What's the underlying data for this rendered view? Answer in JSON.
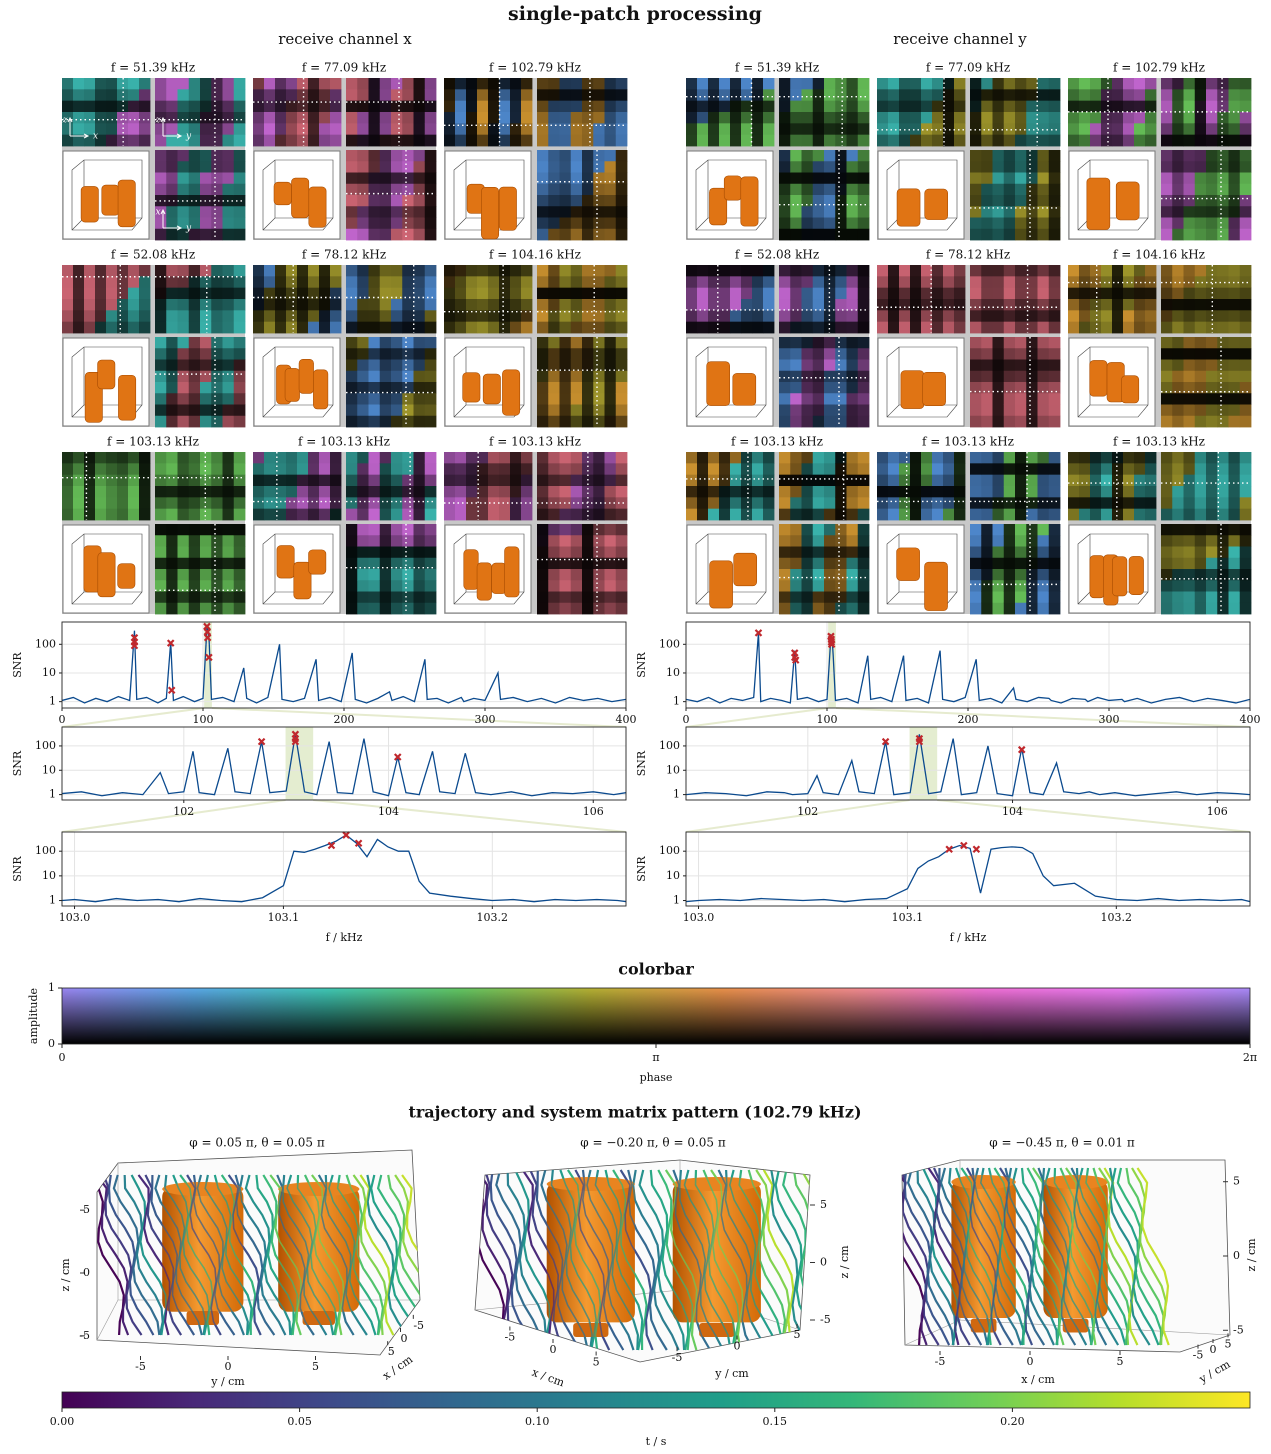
{
  "title": "single-patch processing",
  "trajectory_title": "trajectory and system matrix pattern (102.79 kHz)",
  "orientation_labels": [
    [
      "z",
      "x"
    ],
    [
      "z",
      "y"
    ],
    [
      "x",
      "y"
    ]
  ],
  "channels": [
    {
      "label": "receive channel x",
      "panels": [
        "f = 51.39 kHz",
        "f = 77.09 kHz",
        "f = 102.79 kHz",
        "f = 52.08 kHz",
        "f = 78.12 kHz",
        "f = 104.16 kHz",
        "f = 103.13 kHz",
        "f = 103.13 kHz",
        "f = 103.13 kHz"
      ]
    },
    {
      "label": "receive channel y",
      "panels": [
        "f = 51.39 kHz",
        "f = 77.09 kHz",
        "f = 102.79 kHz",
        "f = 52.08 kHz",
        "f = 78.12 kHz",
        "f = 104.16 kHz",
        "f = 103.13 kHz",
        "f = 103.13 kHz",
        "f = 103.13 kHz"
      ]
    }
  ],
  "chart_data": [
    {
      "type": "line",
      "ylabel": "SNR",
      "yscale": "log",
      "grid": true,
      "xlim": [
        0,
        400
      ],
      "xticks": [
        0,
        100,
        200,
        300,
        400
      ],
      "ylim": [
        0.6,
        600
      ],
      "yticks": [
        1,
        10,
        100
      ],
      "x": [
        0,
        8,
        16,
        24,
        32,
        40,
        48,
        51.4,
        53,
        60,
        68,
        74,
        77.1,
        79,
        86,
        94,
        100,
        102.8,
        103.6,
        104.4,
        106,
        114,
        122,
        128.9,
        131,
        138,
        146,
        154.3,
        156,
        164,
        172,
        180.2,
        182,
        190,
        198,
        205.8,
        208,
        216,
        224,
        232.3,
        234,
        242,
        250,
        257.4,
        259,
        266,
        274,
        283.2,
        285,
        292,
        300,
        309.2,
        311,
        320,
        330,
        340,
        350,
        360,
        370,
        380,
        390,
        400
      ],
      "series": [
        {
          "color": "#0b4a8e",
          "values": [
            1.1,
            1.4,
            0.9,
            1.3,
            1.0,
            1.5,
            1.1,
            300,
            1.2,
            1.4,
            0.9,
            1.3,
            120,
            1.1,
            1.5,
            1.0,
            1.3,
            380,
            300,
            120,
            1.2,
            1.4,
            1.0,
            15,
            1.3,
            0.9,
            1.4,
            100,
            1.2,
            1.0,
            1.3,
            30,
            1.1,
            1.4,
            1.0,
            50,
            1.2,
            0.9,
            1.3,
            2.2,
            1.1,
            1.5,
            1.0,
            30,
            1.2,
            1.3,
            0.9,
            1.4,
            1.0,
            1.3,
            1.1,
            10,
            1.2,
            1.4,
            1.0,
            1.3,
            0.9,
            1.4,
            1.1,
            1.3,
            1.0,
            1.2
          ]
        }
      ],
      "markers": {
        "color": "#c0282d",
        "x": [
          51.4,
          51.4,
          51.4,
          77.1,
          77.8,
          102.8,
          103.1,
          103.3,
          104.2
        ],
        "values": [
          170,
          120,
          90,
          110,
          2.5,
          420,
          270,
          170,
          35
        ]
      }
    },
    {
      "type": "line",
      "ylabel": "SNR",
      "yscale": "log",
      "grid": true,
      "xlim": [
        100.81,
        106.32
      ],
      "xticks": [
        102,
        104,
        106
      ],
      "ylim": [
        0.6,
        600
      ],
      "yticks": [
        1,
        10,
        100
      ],
      "x": [
        100.81,
        101.0,
        101.2,
        101.4,
        101.6,
        101.77,
        101.85,
        102.0,
        102.09,
        102.15,
        102.3,
        102.43,
        102.5,
        102.65,
        102.76,
        102.84,
        103.0,
        103.09,
        103.18,
        103.3,
        103.42,
        103.5,
        103.65,
        103.76,
        103.85,
        104.0,
        104.09,
        104.17,
        104.3,
        104.43,
        104.5,
        104.65,
        104.75,
        104.85,
        105.0,
        105.2,
        105.4,
        105.6,
        105.8,
        106.0,
        106.2,
        106.32
      ],
      "series": [
        {
          "color": "#0b4a8e",
          "values": [
            1.1,
            1.3,
            0.9,
            1.2,
            1.0,
            8,
            1.1,
            1.3,
            60,
            1.2,
            1.0,
            80,
            1.3,
            1.1,
            150,
            1.2,
            1.4,
            300,
            1.3,
            1.0,
            150,
            1.2,
            1.1,
            200,
            1.3,
            0.9,
            35,
            1.2,
            1.0,
            60,
            1.3,
            1.1,
            50,
            1.2,
            1.0,
            1.3,
            0.9,
            1.2,
            1.1,
            1.3,
            1.0,
            1.2
          ]
        }
      ],
      "markers": {
        "color": "#c0282d",
        "x": [
          102.76,
          103.09,
          103.09,
          103.09,
          104.09
        ],
        "values": [
          150,
          300,
          200,
          150,
          35
        ]
      }
    },
    {
      "type": "line",
      "ylabel": "SNR",
      "xlabel": "f / kHz",
      "yscale": "log",
      "grid": true,
      "xlim": [
        102.994,
        103.264
      ],
      "xticks": [
        {
          "value": 103,
          "label": "103.0"
        },
        103.1,
        103.2
      ],
      "ylim": [
        0.6,
        600
      ],
      "yticks": [
        1,
        10,
        100
      ],
      "x": [
        102.994,
        103.0,
        103.01,
        103.02,
        103.03,
        103.04,
        103.05,
        103.06,
        103.07,
        103.08,
        103.09,
        103.1,
        103.105,
        103.11,
        103.115,
        103.12,
        103.125,
        103.13,
        103.135,
        103.14,
        103.145,
        103.15,
        103.155,
        103.16,
        103.165,
        103.17,
        103.18,
        103.19,
        103.2,
        103.21,
        103.22,
        103.23,
        103.24,
        103.25,
        103.26,
        103.264
      ],
      "series": [
        {
          "color": "#0b4a8e",
          "values": [
            1.0,
            1.1,
            0.9,
            1.2,
            1.0,
            1.1,
            0.9,
            1.2,
            1.0,
            0.9,
            1.3,
            4,
            100,
            90,
            120,
            170,
            250,
            450,
            210,
            60,
            300,
            150,
            100,
            100,
            6,
            2,
            1.5,
            1.2,
            1.0,
            1.1,
            0.9,
            1.1,
            1.0,
            1.1,
            1.0,
            0.9
          ]
        }
      ],
      "markers": {
        "color": "#c0282d",
        "x": [
          103.123,
          103.13,
          103.136
        ],
        "values": [
          170,
          450,
          210
        ]
      }
    },
    {
      "type": "line",
      "ylabel": "SNR",
      "yscale": "log",
      "grid": true,
      "xlim": [
        0,
        400
      ],
      "xticks": [
        0,
        100,
        200,
        300,
        400
      ],
      "ylim": [
        0.6,
        600
      ],
      "yticks": [
        1,
        10,
        100
      ],
      "x": [
        0,
        8,
        16,
        24,
        32,
        40,
        48,
        51.4,
        53,
        60,
        68,
        74,
        77.1,
        79,
        86,
        94,
        100,
        102.8,
        103.6,
        104.4,
        106,
        114,
        122,
        128.9,
        131,
        138,
        146,
        154.3,
        156,
        164,
        172,
        180.2,
        182,
        190,
        198,
        205.8,
        208,
        216,
        224,
        232.3,
        234,
        242,
        250,
        257.4,
        259,
        266,
        274,
        283.2,
        285,
        292,
        300,
        309.2,
        311,
        320,
        330,
        340,
        350,
        360,
        370,
        380,
        390,
        400
      ],
      "series": [
        {
          "color": "#0b4a8e",
          "values": [
            1.2,
            1.0,
            1.4,
            0.9,
            1.3,
            1.1,
            1.4,
            250,
            1.0,
            1.3,
            1.1,
            0.9,
            60,
            1.2,
            1.4,
            1.0,
            1.2,
            200,
            170,
            40,
            1.1,
            1.3,
            0.9,
            40,
            1.2,
            1.4,
            1.0,
            40,
            1.1,
            1.3,
            0.9,
            60,
            1.2,
            1.0,
            1.4,
            30,
            1.1,
            1.3,
            0.9,
            3,
            1.2,
            1.0,
            1.4,
            1.3,
            1.1,
            0.9,
            1.3,
            1.2,
            1.0,
            1.4,
            1.1,
            1.2,
            1.0,
            1.3,
            0.9,
            1.2,
            1.4,
            1.0,
            1.3,
            1.1,
            0.9,
            1.2
          ]
        }
      ],
      "markers": {
        "color": "#c0282d",
        "x": [
          51.4,
          77.1,
          77.1,
          77.8,
          102.8,
          103.1,
          103.1,
          103.3
        ],
        "values": [
          250,
          50,
          35,
          28,
          190,
          150,
          120,
          100
        ]
      }
    },
    {
      "type": "line",
      "ylabel": "SNR",
      "yscale": "log",
      "grid": true,
      "xlim": [
        100.81,
        106.32
      ],
      "xticks": [
        102,
        104,
        106
      ],
      "ylim": [
        0.6,
        600
      ],
      "yticks": [
        1,
        10,
        100
      ],
      "x": [
        100.81,
        101.0,
        101.2,
        101.4,
        101.6,
        101.77,
        101.85,
        102.0,
        102.09,
        102.15,
        102.3,
        102.43,
        102.5,
        102.65,
        102.76,
        102.84,
        103.0,
        103.09,
        103.18,
        103.3,
        103.42,
        103.5,
        103.65,
        103.76,
        103.85,
        104.0,
        104.09,
        104.17,
        104.3,
        104.43,
        104.5,
        104.65,
        104.75,
        104.85,
        105.0,
        105.2,
        105.4,
        105.6,
        105.8,
        106.0,
        106.2,
        106.32
      ],
      "series": [
        {
          "color": "#0b4a8e",
          "values": [
            1.0,
            1.2,
            1.1,
            0.9,
            1.3,
            1.2,
            1.0,
            1.1,
            6,
            1.2,
            1.0,
            25,
            1.3,
            1.1,
            150,
            1.0,
            1.2,
            300,
            1.1,
            1.3,
            200,
            1.0,
            1.2,
            100,
            1.1,
            0.9,
            80,
            1.2,
            1.0,
            20,
            1.3,
            1.1,
            1.3,
            1.0,
            1.2,
            0.9,
            1.1,
            1.3,
            1.0,
            1.2,
            1.1,
            1.0
          ]
        }
      ],
      "markers": {
        "color": "#c0282d",
        "x": [
          102.76,
          103.09,
          103.09,
          104.09
        ],
        "values": [
          150,
          200,
          150,
          70
        ]
      }
    },
    {
      "type": "line",
      "ylabel": "SNR",
      "xlabel": "f / kHz",
      "yscale": "log",
      "grid": true,
      "xlim": [
        102.994,
        103.264
      ],
      "xticks": [
        {
          "value": 103,
          "label": "103.0"
        },
        103.1,
        103.2
      ],
      "ylim": [
        0.6,
        600
      ],
      "yticks": [
        1,
        10,
        100
      ],
      "x": [
        102.994,
        103.0,
        103.01,
        103.02,
        103.03,
        103.04,
        103.05,
        103.06,
        103.07,
        103.08,
        103.09,
        103.1,
        103.105,
        103.11,
        103.115,
        103.12,
        103.125,
        103.13,
        103.135,
        103.14,
        103.145,
        103.15,
        103.155,
        103.16,
        103.165,
        103.17,
        103.18,
        103.19,
        103.2,
        103.21,
        103.22,
        103.23,
        103.24,
        103.25,
        103.26,
        103.264
      ],
      "series": [
        {
          "color": "#0b4a8e",
          "values": [
            0.9,
            1.0,
            1.1,
            1.0,
            1.2,
            1.1,
            1.0,
            1.1,
            0.9,
            1.1,
            1.2,
            3,
            20,
            40,
            60,
            120,
            170,
            130,
            2,
            120,
            140,
            150,
            140,
            80,
            10,
            4,
            5,
            1.5,
            1.1,
            1.0,
            1.2,
            1.0,
            1.1,
            1.0,
            1.1,
            0.9
          ]
        }
      ],
      "markers": {
        "color": "#c0282d",
        "x": [
          103.12,
          103.127,
          103.133
        ],
        "values": [
          120,
          170,
          120
        ]
      }
    },
    {
      "type": "colorbar",
      "title": "colorbar",
      "xlabel": "phase",
      "ylabel": "amplitude",
      "xlim": [
        0,
        6.2832
      ],
      "xticks": [
        0,
        {
          "value": 3.1416,
          "label": "π"
        },
        {
          "value": 6.2832,
          "label": "2π"
        }
      ],
      "ylim": [
        0,
        1
      ],
      "yticks": [
        0,
        1
      ],
      "colors": [
        "#9a86f2",
        "#5aa8e6",
        "#3fc6b4",
        "#62c664",
        "#b4b034",
        "#e8904a",
        "#f08a8c",
        "#f070d6",
        "#e87af0",
        "#a98af8"
      ]
    },
    {
      "type": "surface3d",
      "title": "φ = 0.05 π, θ = 0.05 π",
      "xlabel": "x / cm",
      "ylabel": "y / cm",
      "zlabel": "z / cm",
      "xlim": [
        -8,
        8
      ],
      "ylim": [
        -8,
        8
      ],
      "zlim": [
        -7,
        7
      ],
      "xticks": [
        -5,
        0,
        5
      ],
      "yticks": [
        -5,
        0,
        5
      ],
      "zticks": [
        -5,
        0,
        5
      ]
    },
    {
      "type": "surface3d",
      "title": "φ = −0.20 π, θ = 0.05 π",
      "xlabel": "x / cm",
      "ylabel": "y / cm",
      "zlabel": "z / cm",
      "xlim": [
        -8,
        8
      ],
      "ylim": [
        -8,
        8
      ],
      "zlim": [
        -7,
        7
      ],
      "xticks": [
        -5,
        0,
        5
      ],
      "yticks": [
        -5,
        0,
        5
      ],
      "zticks": [
        -5,
        0,
        5
      ]
    },
    {
      "type": "surface3d",
      "title": "φ = −0.45 π, θ = 0.01 π",
      "xlabel": "x / cm",
      "ylabel": "y / cm",
      "zlabel": "z / cm",
      "xlim": [
        -8,
        8
      ],
      "ylim": [
        -8,
        8
      ],
      "zlim": [
        -7,
        7
      ],
      "xticks": [
        -5,
        0,
        5
      ],
      "yticks": [
        -5,
        0,
        5
      ],
      "zticks": [
        -5,
        0,
        5
      ]
    },
    {
      "type": "colorbar",
      "xlabel": "t / s",
      "xlim": [
        0,
        0.25
      ],
      "xticks": [
        {
          "value": 0,
          "label": "0.00"
        },
        0.05,
        {
          "value": 0.1,
          "label": "0.10"
        },
        0.15,
        {
          "value": 0.2,
          "label": "0.20"
        }
      ],
      "colors": [
        "#440154",
        "#482878",
        "#3e4989",
        "#31688e",
        "#26828e",
        "#1f9e89",
        "#35b779",
        "#6ece58",
        "#b5de2b",
        "#fde725"
      ]
    }
  ]
}
